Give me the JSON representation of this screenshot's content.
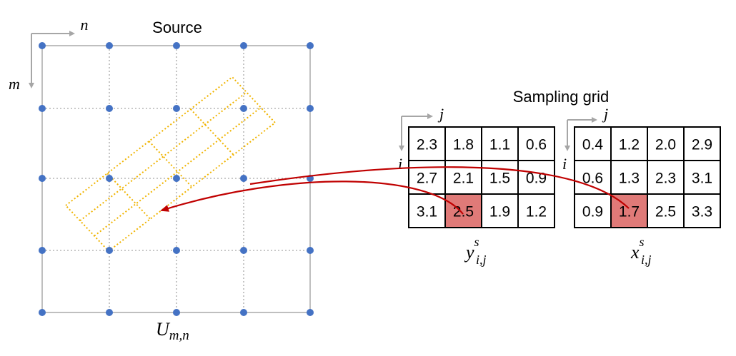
{
  "source": {
    "title": "Source",
    "axis_n": "n",
    "axis_m": "m",
    "caption_main": "U",
    "caption_sub": "m,n",
    "grid_size": [
      5,
      5
    ]
  },
  "sampling": {
    "title": "Sampling grid",
    "axis_j": "j",
    "axis_i": "i",
    "y_grid": {
      "caption_main": "y",
      "caption_sup": "s",
      "caption_sub": "i,j",
      "values": [
        [
          "2.3",
          "1.8",
          "1.1",
          "0.6"
        ],
        [
          "2.7",
          "2.1",
          "1.5",
          "0.9"
        ],
        [
          "3.1",
          "2.5",
          "1.9",
          "1.2"
        ]
      ],
      "highlight": [
        2,
        1
      ]
    },
    "x_grid": {
      "caption_main": "x",
      "caption_sup": "s",
      "caption_sub": "i,j",
      "values": [
        [
          "0.4",
          "1.2",
          "2.0",
          "2.9"
        ],
        [
          "0.6",
          "1.3",
          "2.3",
          "3.1"
        ],
        [
          "0.9",
          "1.7",
          "2.5",
          "3.3"
        ]
      ],
      "highlight": [
        2,
        1
      ]
    }
  },
  "colors": {
    "node": "#4472c4",
    "grid_line": "#bfbfbf",
    "grid_dotted": "#a6a6a6",
    "sample_box": "#f0b400",
    "highlight_fill": "#e07a78",
    "arrow": "#c00000",
    "axis_arrow": "#a6a6a6"
  }
}
